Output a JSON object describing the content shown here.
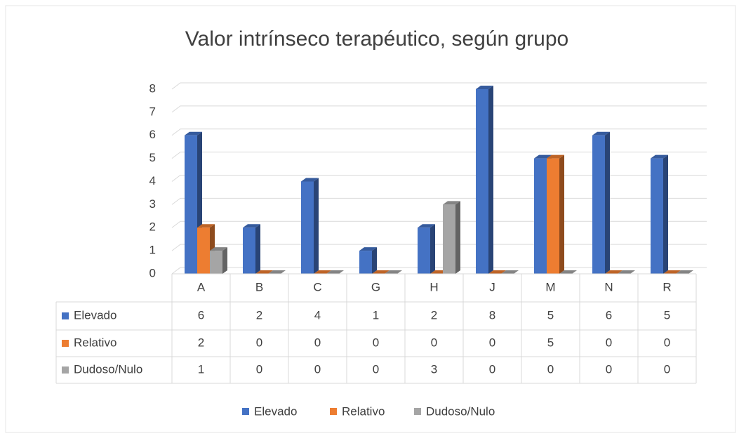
{
  "chart_data": {
    "type": "bar3d",
    "title": "Valor intrínseco terapéutico, según grupo",
    "categories": [
      "A",
      "B",
      "C",
      "G",
      "H",
      "J",
      "M",
      "N",
      "R"
    ],
    "series": [
      {
        "name": "Elevado",
        "color": "#4472c4",
        "values": [
          6,
          2,
          4,
          1,
          2,
          8,
          5,
          6,
          5
        ]
      },
      {
        "name": "Relativo",
        "color": "#ed7d31",
        "values": [
          2,
          0,
          0,
          0,
          0,
          0,
          5,
          0,
          0
        ]
      },
      {
        "name": "Dudoso/Nulo",
        "color": "#a5a5a5",
        "values": [
          1,
          0,
          0,
          0,
          3,
          0,
          0,
          0,
          0
        ]
      }
    ],
    "ylim": [
      0,
      8
    ],
    "yticks": [
      0,
      1,
      2,
      3,
      4,
      5,
      6,
      7,
      8
    ],
    "grid": true,
    "data_table": true,
    "legend": "bottom"
  }
}
